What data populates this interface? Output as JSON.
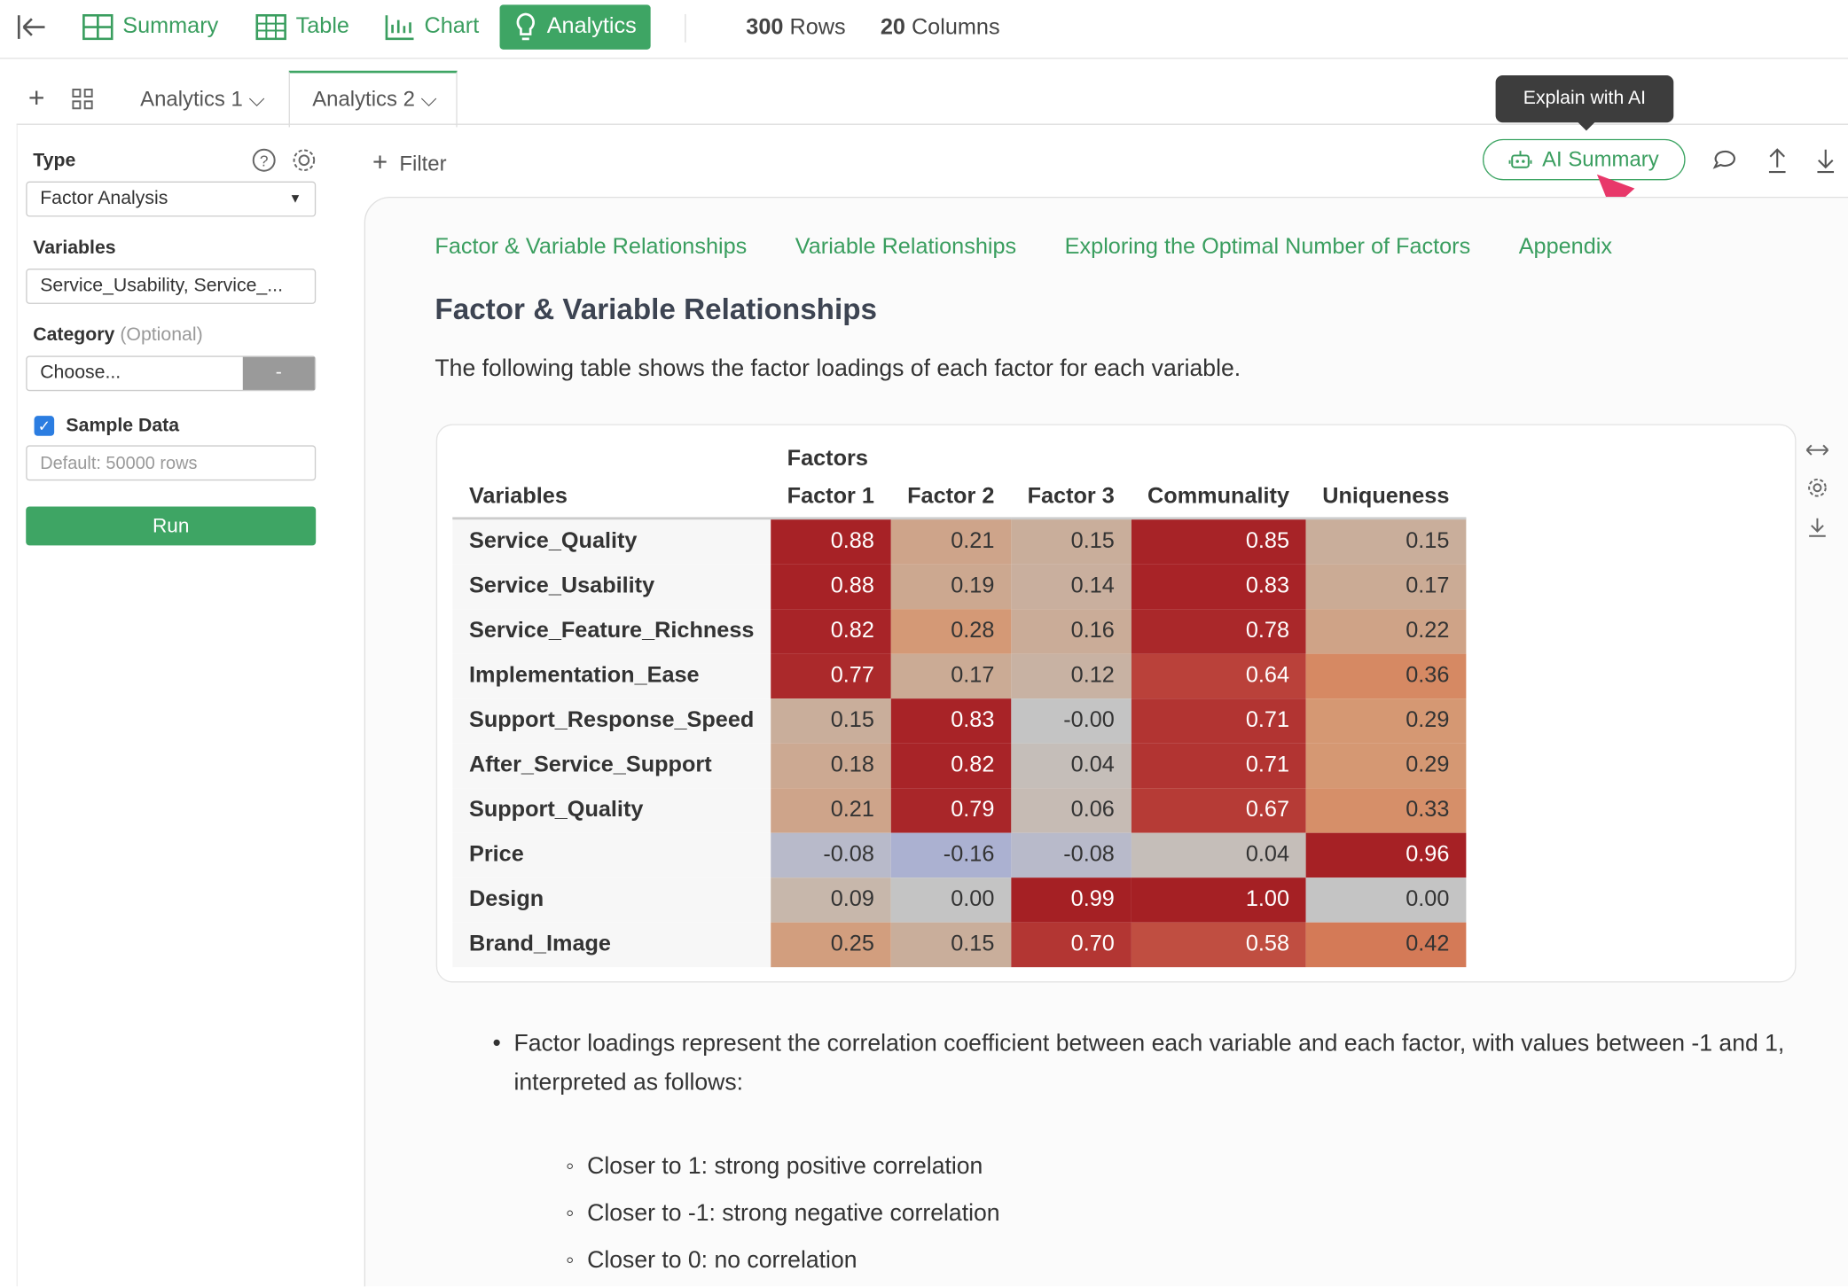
{
  "toolbar": {
    "nav": [
      "Summary",
      "Table",
      "Chart",
      "Analytics"
    ],
    "rows": {
      "count": "300",
      "label": "Rows"
    },
    "columns": {
      "count": "20",
      "label": "Columns"
    }
  },
  "tabs": [
    "Analytics 1",
    "Analytics 2"
  ],
  "sidebar": {
    "type_label": "Type",
    "type_value": "Factor Analysis",
    "variables_label": "Variables",
    "variables_value": "Service_Usability, Service_...",
    "category_label": "Category",
    "category_optional": "(Optional)",
    "category_placeholder": "Choose...",
    "category_button": "-",
    "sample_label": "Sample Data",
    "sample_placeholder": "Default: 50000 rows",
    "run": "Run"
  },
  "content": {
    "filter": "Filter",
    "tooltip": "Explain with AI",
    "ai_summary": "AI Summary",
    "nav_links": [
      "Factor & Variable Relationships",
      "Variable Relationships",
      "Exploring the Optimal Number of Factors",
      "Appendix"
    ],
    "heading": "Factor & Variable Relationships",
    "intro": "The following table shows the factor loadings of each factor for each variable.",
    "table": {
      "group_header": "Factors",
      "columns": [
        "Variables",
        "Factor 1",
        "Factor 2",
        "Factor 3",
        "Communality",
        "Uniqueness"
      ],
      "rows": [
        [
          "Service_Quality",
          "0.88",
          "0.21",
          "0.15",
          "0.85",
          "0.15"
        ],
        [
          "Service_Usability",
          "0.88",
          "0.19",
          "0.14",
          "0.83",
          "0.17"
        ],
        [
          "Service_Feature_Richness",
          "0.82",
          "0.28",
          "0.16",
          "0.78",
          "0.22"
        ],
        [
          "Implementation_Ease",
          "0.77",
          "0.17",
          "0.12",
          "0.64",
          "0.36"
        ],
        [
          "Support_Response_Speed",
          "0.15",
          "0.83",
          "-0.00",
          "0.71",
          "0.29"
        ],
        [
          "After_Service_Support",
          "0.18",
          "0.82",
          "0.04",
          "0.71",
          "0.29"
        ],
        [
          "Support_Quality",
          "0.21",
          "0.79",
          "0.06",
          "0.67",
          "0.33"
        ],
        [
          "Price",
          "-0.08",
          "-0.16",
          "-0.08",
          "0.04",
          "0.96"
        ],
        [
          "Design",
          "0.09",
          "0.00",
          "0.99",
          "1.00",
          "0.00"
        ],
        [
          "Brand_Image",
          "0.25",
          "0.15",
          "0.70",
          "0.58",
          "0.42"
        ]
      ]
    },
    "bullet": "Factor loadings represent the correlation coefficient between each variable and each factor, with values between -1 and 1, interpreted as follows:",
    "sub_bullets": [
      "Closer to 1: strong positive correlation",
      "Closer to -1: strong negative correlation",
      "Closer to 0: no correlation"
    ]
  }
}
